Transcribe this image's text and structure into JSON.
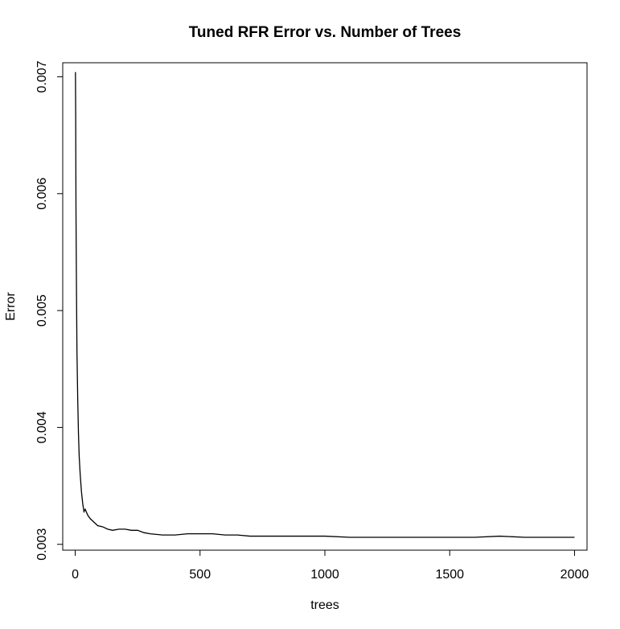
{
  "chart_data": {
    "type": "line",
    "title": "Tuned RFR Error vs. Number of Trees",
    "xlabel": "trees",
    "ylabel": "Error",
    "xlim": [
      -50,
      2050
    ],
    "ylim": [
      0.00295,
      0.00712
    ],
    "x_ticks": [
      0,
      500,
      1000,
      1500,
      2000
    ],
    "x_tick_labels": [
      "0",
      "500",
      "1000",
      "1500",
      "2000"
    ],
    "y_ticks": [
      0.003,
      0.004,
      0.005,
      0.006,
      0.007
    ],
    "y_tick_labels": [
      "0.003",
      "0.004",
      "0.005",
      "0.006",
      "0.007"
    ],
    "grid": false,
    "legend": "none",
    "line_color": "#000000",
    "series": [
      {
        "x": [
          1,
          2,
          3,
          5,
          7,
          10,
          13,
          16,
          20,
          25,
          30,
          35,
          40,
          50,
          60,
          75,
          90,
          110,
          130,
          150,
          175,
          200,
          225,
          250,
          275,
          300,
          350,
          400,
          450,
          500,
          550,
          600,
          650,
          700,
          800,
          900,
          1000,
          1100,
          1200,
          1300,
          1400,
          1500,
          1600,
          1700,
          1800,
          1900,
          2000
        ],
        "y": [
          0.00704,
          0.00665,
          0.0059,
          0.0052,
          0.00465,
          0.00425,
          0.00395,
          0.00375,
          0.0036,
          0.00345,
          0.00335,
          0.00328,
          0.0033,
          0.00325,
          0.00322,
          0.00319,
          0.00316,
          0.00315,
          0.00313,
          0.00312,
          0.00313,
          0.00313,
          0.00312,
          0.00312,
          0.0031,
          0.00309,
          0.00308,
          0.00308,
          0.00309,
          0.00309,
          0.00309,
          0.00308,
          0.00308,
          0.00307,
          0.00307,
          0.00307,
          0.00307,
          0.00306,
          0.00306,
          0.00306,
          0.00306,
          0.00306,
          0.00306,
          0.00307,
          0.00306,
          0.00306,
          0.00306
        ]
      }
    ]
  }
}
